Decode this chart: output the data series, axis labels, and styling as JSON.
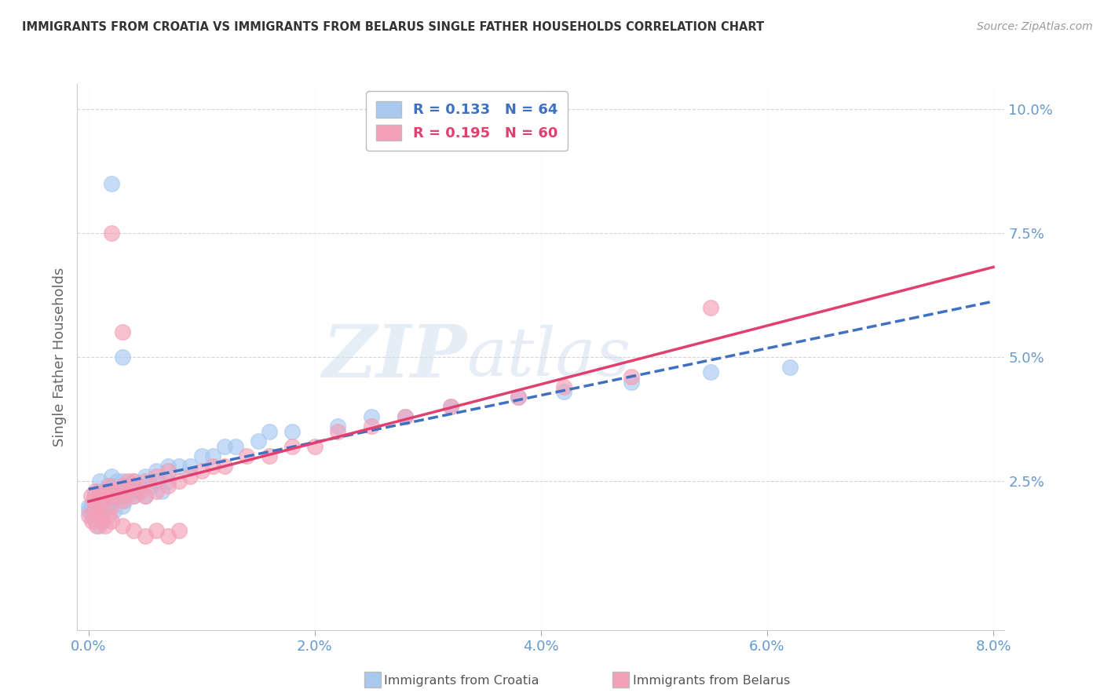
{
  "title": "IMMIGRANTS FROM CROATIA VS IMMIGRANTS FROM BELARUS SINGLE FATHER HOUSEHOLDS CORRELATION CHART",
  "source": "Source: ZipAtlas.com",
  "ylabel": "Single Father Households",
  "legend_label1": "Immigrants from Croatia",
  "legend_label2": "Immigrants from Belarus",
  "R1": 0.133,
  "N1": 64,
  "R2": 0.195,
  "N2": 60,
  "xlim": [
    -0.001,
    0.081
  ],
  "ylim": [
    -0.005,
    0.105
  ],
  "xticks": [
    0.0,
    0.02,
    0.04,
    0.06,
    0.08
  ],
  "xtick_labels": [
    "0.0%",
    "2.0%",
    "4.0%",
    "6.0%",
    "8.0%"
  ],
  "yticks": [
    0.025,
    0.05,
    0.075,
    0.1
  ],
  "ytick_labels": [
    "2.5%",
    "5.0%",
    "7.5%",
    "10.0%"
  ],
  "color1": "#A8C8F0",
  "color2": "#F4A0B8",
  "trendline1_color": "#4070C0",
  "trendline2_color": "#E04070",
  "watermark_zip": "ZIP",
  "watermark_atlas": "atlas",
  "background_color": "#FFFFFF",
  "grid_color": "#CCCCCC",
  "title_color": "#333333",
  "axis_label_color": "#6699CC",
  "croatia_x": [
    0.0002,
    0.0005,
    0.0008,
    0.001,
    0.001,
    0.0012,
    0.0013,
    0.0014,
    0.0015,
    0.0016,
    0.0017,
    0.0018,
    0.002,
    0.002,
    0.002,
    0.0022,
    0.0023,
    0.0025,
    0.0025,
    0.0027,
    0.003,
    0.003,
    0.003,
    0.0032,
    0.0035,
    0.0038,
    0.004,
    0.004,
    0.0042,
    0.0045,
    0.005,
    0.005,
    0.0055,
    0.006,
    0.006,
    0.0065,
    0.007,
    0.007,
    0.008,
    0.009,
    0.01,
    0.011,
    0.012,
    0.013,
    0.015,
    0.016,
    0.018,
    0.022,
    0.025,
    0.028,
    0.032,
    0.038,
    0.042,
    0.048,
    0.055,
    0.062,
    0.0,
    0.0,
    0.0003,
    0.0006,
    0.0009,
    0.0012,
    0.002,
    0.003
  ],
  "croatia_y": [
    0.02,
    0.022,
    0.021,
    0.023,
    0.025,
    0.019,
    0.022,
    0.02,
    0.021,
    0.023,
    0.024,
    0.02,
    0.022,
    0.024,
    0.026,
    0.019,
    0.021,
    0.022,
    0.025,
    0.023,
    0.02,
    0.022,
    0.025,
    0.021,
    0.023,
    0.024,
    0.022,
    0.025,
    0.023,
    0.024,
    0.022,
    0.026,
    0.024,
    0.025,
    0.027,
    0.023,
    0.025,
    0.028,
    0.028,
    0.028,
    0.03,
    0.03,
    0.032,
    0.032,
    0.033,
    0.035,
    0.035,
    0.036,
    0.038,
    0.038,
    0.04,
    0.042,
    0.043,
    0.045,
    0.047,
    0.048,
    0.019,
    0.02,
    0.018,
    0.017,
    0.016,
    0.018,
    0.085,
    0.05
  ],
  "belarus_x": [
    0.0002,
    0.0004,
    0.0006,
    0.0008,
    0.001,
    0.0012,
    0.0014,
    0.0016,
    0.0018,
    0.002,
    0.002,
    0.0022,
    0.0025,
    0.003,
    0.003,
    0.0032,
    0.0035,
    0.004,
    0.004,
    0.0045,
    0.005,
    0.005,
    0.006,
    0.006,
    0.007,
    0.007,
    0.008,
    0.009,
    0.01,
    0.011,
    0.012,
    0.014,
    0.016,
    0.018,
    0.02,
    0.022,
    0.025,
    0.028,
    0.032,
    0.038,
    0.042,
    0.048,
    0.0,
    0.0003,
    0.0005,
    0.0007,
    0.0009,
    0.0012,
    0.0015,
    0.0018,
    0.002,
    0.003,
    0.004,
    0.005,
    0.006,
    0.007,
    0.008,
    0.055,
    0.002,
    0.003
  ],
  "belarus_y": [
    0.022,
    0.021,
    0.023,
    0.02,
    0.022,
    0.021,
    0.023,
    0.022,
    0.024,
    0.02,
    0.023,
    0.022,
    0.023,
    0.021,
    0.024,
    0.022,
    0.025,
    0.022,
    0.025,
    0.023,
    0.022,
    0.025,
    0.023,
    0.026,
    0.024,
    0.027,
    0.025,
    0.026,
    0.027,
    0.028,
    0.028,
    0.03,
    0.03,
    0.032,
    0.032,
    0.035,
    0.036,
    0.038,
    0.04,
    0.042,
    0.044,
    0.046,
    0.018,
    0.017,
    0.019,
    0.016,
    0.018,
    0.017,
    0.016,
    0.018,
    0.017,
    0.016,
    0.015,
    0.014,
    0.015,
    0.014,
    0.015,
    0.06,
    0.075,
    0.055
  ]
}
